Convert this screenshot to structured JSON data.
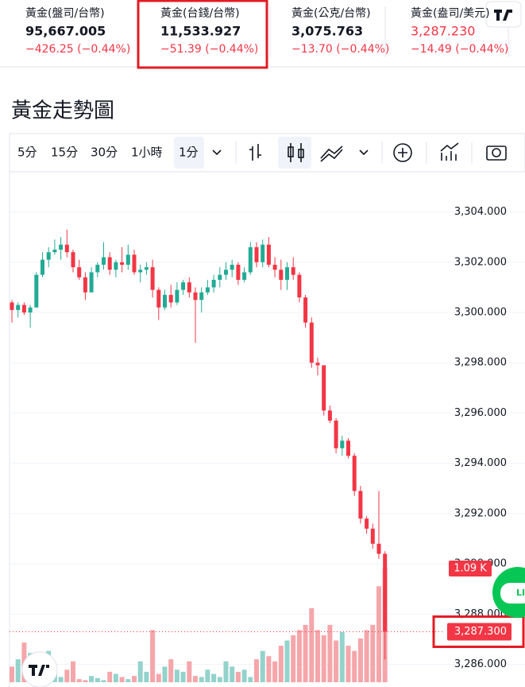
{
  "quotes": [
    {
      "name": "黃金(盤司/台幣)",
      "price": "95,667.005",
      "change": "−426.25 (−0.44%)"
    },
    {
      "name": "黃金(台錢/台幣)",
      "price": "11,533.927",
      "change": "−51.39 (−0.44%)"
    },
    {
      "name": "黃金(公克/台幣)",
      "price": "3,075.763",
      "change": "−13.70 (−0.44%)"
    },
    {
      "name": "黃金(盎司/美元)",
      "price": "3,287.230",
      "change": "−14.49 (−0.44%)"
    }
  ],
  "title": "黃金走勢圖",
  "toolbar": {
    "intervals": [
      "5分",
      "15分",
      "30分",
      "1小時"
    ],
    "active_interval": "1分"
  },
  "line_button": "LINE",
  "chart_data": {
    "type": "candlestick",
    "up_color": "#22ab94",
    "down_color": "#f23645",
    "up_volume_color": "#93d3cb",
    "down_volume_color": "#f5a6aa",
    "open": [
      3300.4,
      3300.1,
      3300.3,
      3300.0,
      3300.2,
      3301.5,
      3302.1,
      3302.4,
      3302.5,
      3302.7,
      3302.4,
      3301.8,
      3301.4,
      3300.8,
      3301.6,
      3301.9,
      3302.2,
      3301.7,
      3302.0,
      3301.9,
      3302.3,
      3301.6,
      3301.7,
      3301.8,
      3300.9,
      3300.2,
      3300.7,
      3300.4,
      3300.9,
      3301.2,
      3300.8,
      3300.5,
      3300.8,
      3301.0,
      3301.3,
      3301.5,
      3301.7,
      3301.9,
      3301.3,
      3301.6,
      3302.6,
      3302.0,
      3302.7,
      3301.9,
      3301.7,
      3301.3,
      3301.8,
      3301.5,
      3300.6,
      3299.6,
      3298.0,
      3297.9,
      3296.1,
      3295.7,
      3294.6,
      3294.9,
      3294.3,
      3292.9,
      3291.8,
      3291.4,
      3290.8,
      3290.4
    ],
    "high": [
      3300.5,
      3300.4,
      3300.4,
      3300.3,
      3301.6,
      3302.4,
      3302.6,
      3302.9,
      3303.0,
      3303.3,
      3302.5,
      3302.1,
      3301.6,
      3301.8,
      3302.0,
      3302.8,
      3302.4,
      3302.1,
      3302.6,
      3302.7,
      3302.5,
      3301.9,
      3302.0,
      3302.1,
      3301.0,
      3300.9,
      3301.1,
      3301.2,
      3301.3,
      3301.4,
      3301.0,
      3301.0,
      3301.3,
      3301.5,
      3301.8,
      3302.0,
      3302.1,
      3302.0,
      3301.8,
      3302.8,
      3302.8,
      3302.9,
      3303.0,
      3302.2,
      3302.1,
      3302.0,
      3302.2,
      3301.6,
      3300.7,
      3299.8,
      3298.2,
      3297.9,
      3296.3,
      3295.8,
      3295.1,
      3295.0,
      3294.4,
      3293.1,
      3291.9,
      3291.6,
      3292.9,
      3290.5
    ],
    "low": [
      3299.6,
      3299.8,
      3299.9,
      3299.4,
      3300.2,
      3301.4,
      3301.8,
      3302.3,
      3302.1,
      3302.2,
      3301.6,
      3301.3,
      3300.5,
      3300.8,
      3301.4,
      3301.7,
      3301.5,
      3301.4,
      3301.6,
      3301.7,
      3301.5,
      3301.2,
      3301.5,
      3300.6,
      3299.7,
      3300.1,
      3300.2,
      3300.3,
      3300.7,
      3300.6,
      3298.8,
      3300.0,
      3300.7,
      3300.8,
      3301.0,
      3301.3,
      3301.4,
      3301.1,
      3301.2,
      3301.5,
      3301.8,
      3301.8,
      3301.8,
      3301.4,
      3300.9,
      3300.9,
      3301.3,
      3300.4,
      3299.4,
      3297.8,
      3297.5,
      3295.9,
      3295.6,
      3294.4,
      3294.3,
      3294.2,
      3292.7,
      3291.6,
      3291.2,
      3290.6,
      3290.2,
      3286.2
    ],
    "close": [
      3300.1,
      3300.3,
      3300.0,
      3300.2,
      3301.5,
      3302.1,
      3302.4,
      3302.5,
      3302.7,
      3302.4,
      3301.8,
      3301.4,
      3300.8,
      3301.6,
      3301.9,
      3302.2,
      3301.7,
      3302.0,
      3301.9,
      3302.3,
      3301.6,
      3301.7,
      3301.8,
      3300.9,
      3300.2,
      3300.7,
      3300.4,
      3300.9,
      3301.2,
      3300.8,
      3300.5,
      3300.8,
      3301.0,
      3301.3,
      3301.5,
      3301.7,
      3301.9,
      3301.3,
      3301.6,
      3302.6,
      3302.0,
      3302.7,
      3301.9,
      3301.7,
      3301.3,
      3301.8,
      3301.5,
      3300.6,
      3299.6,
      3298.0,
      3297.9,
      3296.1,
      3295.7,
      3294.6,
      3294.9,
      3294.3,
      3292.9,
      3291.8,
      3291.4,
      3290.8,
      3290.4,
      3287.3
    ],
    "volume": [
      0.15,
      0.22,
      0.38,
      0.28,
      0.12,
      0.08,
      0.3,
      0.1,
      0.05,
      0.12,
      0.2,
      0.03,
      0.02,
      0.06,
      0.04,
      0.02,
      0.1,
      0.08,
      0.05,
      0.03,
      0.06,
      0.2,
      0.1,
      0.5,
      0.08,
      0.15,
      0.22,
      0.12,
      0.1,
      0.2,
      0.06,
      0.05,
      0.12,
      0.08,
      0.05,
      0.2,
      0.15,
      0.1,
      0.12,
      0.05,
      0.22,
      0.3,
      0.25,
      0.2,
      0.35,
      0.4,
      0.45,
      0.5,
      0.55,
      0.71,
      0.5,
      0.45,
      0.55,
      0.4,
      0.48,
      0.35,
      0.3,
      0.42,
      0.5,
      0.55,
      0.92,
      1.09
    ],
    "ylim": [
      3285.1,
      3305.6
    ],
    "yticks": [
      {
        "value": 3286,
        "label": "3,286.000"
      },
      {
        "value": 3288,
        "label": "3,288.000"
      },
      {
        "value": 3290,
        "label": "3,290.000"
      },
      {
        "value": 3292,
        "label": "3,292.000"
      },
      {
        "value": 3294,
        "label": "3,294.000"
      },
      {
        "value": 3296,
        "label": "3,296.000"
      },
      {
        "value": 3298,
        "label": "3,298.000"
      },
      {
        "value": 3300,
        "label": "3,300.000"
      },
      {
        "value": 3302,
        "label": "3,302.000"
      },
      {
        "value": 3304,
        "label": "3,304.000"
      }
    ],
    "last_price": {
      "value": 3287.3,
      "label": "3,287.300"
    },
    "last_volume": {
      "value": 1.09,
      "label": "1.09 K"
    }
  }
}
